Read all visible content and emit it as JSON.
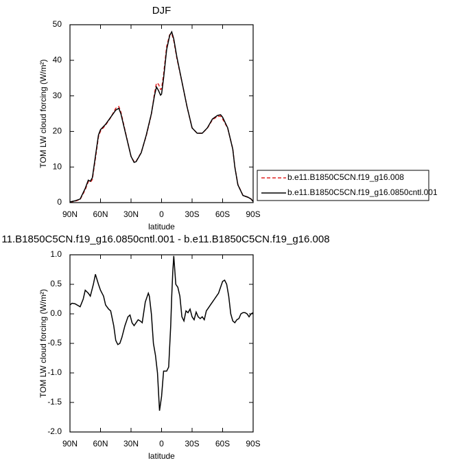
{
  "chart_data": [
    {
      "type": "line",
      "title": "DJF",
      "xlabel": "latitude",
      "ylabel": "TOM LW cloud forcing (W/m²)",
      "xlim": [
        90,
        -90
      ],
      "ylim": [
        0,
        50
      ],
      "xticks": [
        {
          "value": 90,
          "label": "90N"
        },
        {
          "value": 60,
          "label": "60N"
        },
        {
          "value": 30,
          "label": "30N"
        },
        0,
        {
          "value": -30,
          "label": "30S"
        },
        {
          "value": -60,
          "label": "60S"
        },
        {
          "value": -90,
          "label": "90S"
        }
      ],
      "yticks": [
        0,
        10,
        20,
        30,
        40,
        50
      ],
      "legend": "right",
      "x": [
        90,
        85,
        80,
        75,
        72,
        70,
        68,
        65,
        62,
        60,
        55,
        50,
        45,
        42,
        40,
        35,
        30,
        27,
        25,
        20,
        15,
        10,
        7,
        5,
        3,
        1,
        0,
        -2,
        -5,
        -8,
        -10,
        -12,
        -15,
        -20,
        -25,
        -30,
        -35,
        -40,
        -45,
        -50,
        -55,
        -58,
        -60,
        -65,
        -70,
        -72,
        -75,
        -80,
        -85,
        -88,
        -90
      ],
      "series": [
        {
          "name": "b.e11.B1850C5CN.f19_g16.008",
          "color": "#e02020",
          "linestyle": "dashed",
          "values": [
            0.1,
            0.4,
            0.9,
            3.6,
            5.9,
            5.7,
            6.5,
            12.4,
            18.5,
            20.1,
            21.8,
            23.9,
            26.5,
            27,
            25.5,
            19.2,
            13,
            11.5,
            11.6,
            14.1,
            18.8,
            24.8,
            30.6,
            33.6,
            33.3,
            31.8,
            32,
            36,
            43.9,
            47.2,
            47.5,
            45.5,
            40.6,
            34,
            27,
            21,
            19.5,
            19.5,
            20.9,
            23.3,
            24.2,
            24.3,
            23.5,
            20.9,
            15.1,
            10.1,
            5.1,
            2,
            1.5,
            1,
            0.3
          ]
        },
        {
          "name": "b.e11.B1850C5CN.f19_g16.0850cntl.001",
          "color": "#000000",
          "linestyle": "solid",
          "values": [
            0.2,
            0.5,
            1,
            4,
            6.3,
            6,
            7,
            13,
            19,
            20.5,
            22,
            24,
            26,
            26.5,
            25,
            19,
            13,
            11.3,
            11.5,
            14,
            19,
            25,
            30,
            32.5,
            31.5,
            30.2,
            30.5,
            35,
            43,
            47,
            48,
            46,
            41,
            34,
            27,
            21,
            19.5,
            19.5,
            21,
            23.5,
            24.5,
            24.7,
            24,
            21,
            15,
            10,
            5,
            2,
            1.5,
            1,
            0.3
          ]
        }
      ]
    },
    {
      "type": "line",
      "title": "11.B1850C5CN.f19_g16.0850cntl.001 - b.e11.B1850C5CN.f19_g16.008",
      "xlabel": "latitude",
      "ylabel": "TOM LW cloud forcing (W/m²)",
      "xlim": [
        90,
        -90
      ],
      "ylim": [
        -2,
        1
      ],
      "xticks": [
        {
          "value": 90,
          "label": "90N"
        },
        {
          "value": 60,
          "label": "60N"
        },
        {
          "value": 30,
          "label": "30N"
        },
        0,
        {
          "value": -30,
          "label": "30S"
        },
        {
          "value": -60,
          "label": "60S"
        },
        {
          "value": -90,
          "label": "90S"
        }
      ],
      "yticks": [
        {
          "value": 1,
          "label": "1.0"
        },
        {
          "value": 0.5,
          "label": "0.5"
        },
        {
          "value": 0,
          "label": "0.0"
        },
        {
          "value": -0.5,
          "label": "-0.5"
        },
        {
          "value": -1,
          "label": "-1.0"
        },
        {
          "value": -1.5,
          "label": "-1.5"
        },
        {
          "value": -2,
          "label": "-2.0"
        }
      ],
      "x": [
        90,
        88,
        85,
        80,
        77,
        75,
        72,
        70,
        67,
        65,
        62,
        60,
        57,
        55,
        52,
        50,
        47,
        45,
        43,
        41,
        39,
        36,
        33,
        31,
        29,
        27,
        25,
        23,
        21,
        19,
        16,
        13,
        12,
        10,
        8,
        6,
        4,
        2,
        0,
        -2,
        -5,
        -7,
        -9,
        -10,
        -11,
        -12,
        -14,
        -16,
        -18,
        -20,
        -22,
        -24,
        -26,
        -28,
        -30,
        -32,
        -34,
        -36,
        -38,
        -40,
        -42,
        -44,
        -46,
        -48,
        -50,
        -52,
        -54,
        -56,
        -58,
        -60,
        -62,
        -64,
        -66,
        -68,
        -70,
        -72,
        -74,
        -76,
        -78,
        -80,
        -82,
        -84,
        -86,
        -88,
        -90
      ],
      "series": [
        {
          "color": "#000000",
          "linestyle": "solid",
          "values": [
            0.15,
            0.18,
            0.17,
            0.12,
            0.25,
            0.4,
            0.35,
            0.3,
            0.5,
            0.67,
            0.5,
            0.4,
            0.3,
            0.15,
            0.08,
            0.05,
            -0.2,
            -0.45,
            -0.52,
            -0.5,
            -0.4,
            -0.2,
            -0.05,
            -0.02,
            -0.15,
            -0.2,
            -0.15,
            -0.1,
            -0.12,
            -0.15,
            0.2,
            0.35,
            0.3,
            0,
            -0.5,
            -0.7,
            -1.0,
            -1.64,
            -1.4,
            -0.97,
            -0.97,
            -0.9,
            -0.2,
            0.3,
            0.7,
            0.98,
            0.5,
            0.45,
            0.3,
            -0.05,
            -0.12,
            0.05,
            0.02,
            0.08,
            -0.05,
            -0.1,
            0.03,
            -0.05,
            -0.08,
            -0.05,
            -0.1,
            0.05,
            0.1,
            0.15,
            0.2,
            0.25,
            0.3,
            0.35,
            0.45,
            0.55,
            0.57,
            0.5,
            0.3,
            0,
            -0.12,
            -0.15,
            -0.1,
            -0.08,
            0,
            0.02,
            0.02,
            0,
            -0.05,
            0,
            0.02
          ]
        }
      ]
    }
  ]
}
